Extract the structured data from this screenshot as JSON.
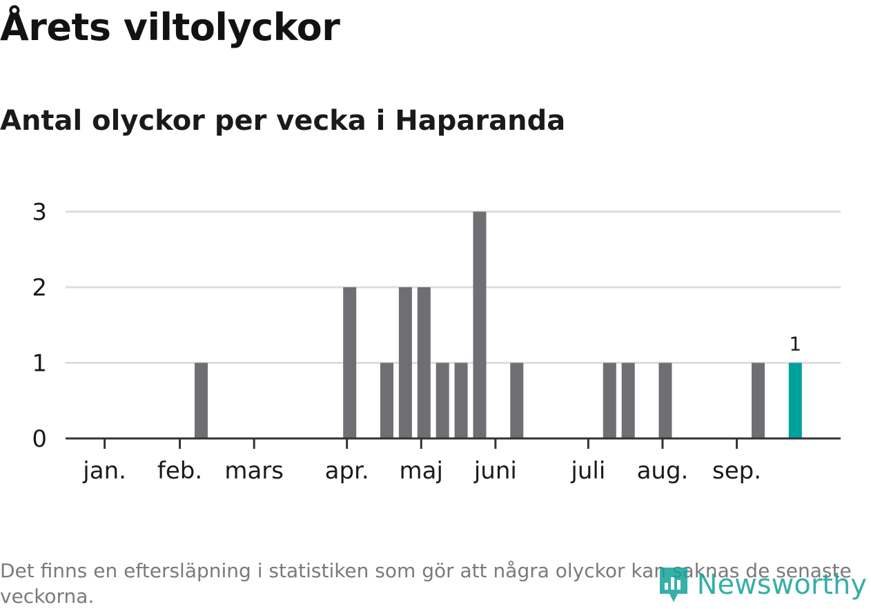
{
  "header": {
    "title": "Årets viltolyckor",
    "subtitle": "Antal olyckor per vecka i Haparanda"
  },
  "footer": {
    "note": "Det finns en eftersläpning i statistiken som gör att några olyckor kan saknas de senaste veckorna.",
    "brand": "Newsworthy"
  },
  "colors": {
    "bar": "#6f6e73",
    "highlight": "#00a19a",
    "grid": "#dddddd",
    "axis": "#333333",
    "brand": "#13a29a"
  },
  "chart_data": {
    "type": "bar",
    "title": "Årets viltolyckor",
    "subtitle": "Antal olyckor per vecka i Haparanda",
    "xlabel": "",
    "ylabel": "",
    "x_axis": "week of year",
    "ylim": [
      0,
      3
    ],
    "yticks": [
      0,
      1,
      2,
      3
    ],
    "grid": true,
    "month_ticks": [
      {
        "label": "jan.",
        "week": 0.8
      },
      {
        "label": "feb.",
        "week": 4.85
      },
      {
        "label": "mars",
        "week": 8.85
      },
      {
        "label": "apr.",
        "week": 13.85
      },
      {
        "label": "maj",
        "week": 17.85
      },
      {
        "label": "juni",
        "week": 21.85
      },
      {
        "label": "juli",
        "week": 26.85
      },
      {
        "label": "aug.",
        "week": 30.85
      },
      {
        "label": "sep.",
        "week": 34.85
      }
    ],
    "weeks": [
      6,
      14,
      16,
      17,
      18,
      19,
      20,
      21,
      23,
      28,
      29,
      31,
      36,
      38
    ],
    "values": [
      1,
      2,
      1,
      2,
      2,
      1,
      1,
      3,
      1,
      1,
      1,
      1,
      1,
      1
    ],
    "highlight_week": 38,
    "highlight_label": "1"
  }
}
